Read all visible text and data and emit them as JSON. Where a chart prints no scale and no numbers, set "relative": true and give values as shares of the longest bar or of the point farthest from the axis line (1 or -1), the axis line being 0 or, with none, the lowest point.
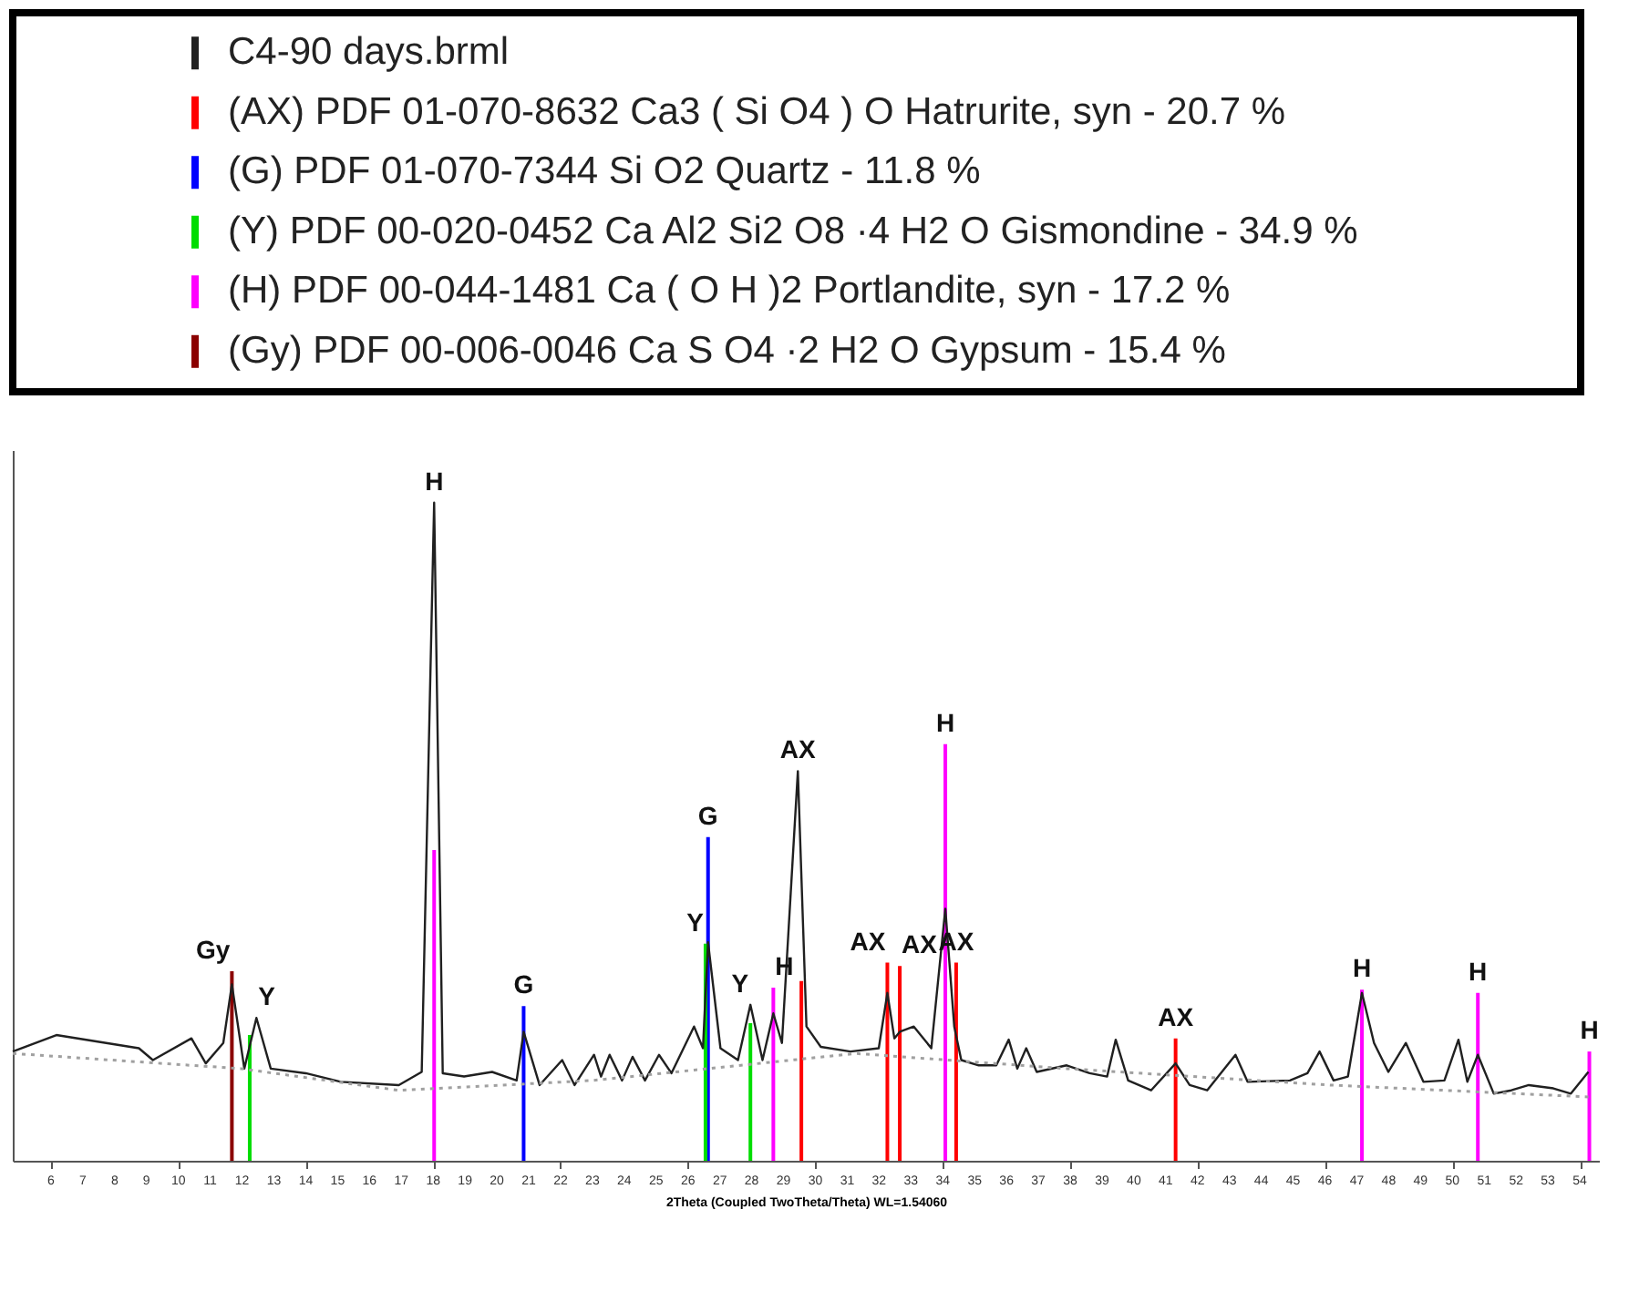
{
  "chart_data": {
    "type": "line",
    "relative": true,
    "xlabel": "2Theta (Coupled TwoTheta/Theta) WL=1.54060",
    "xlim": [
      4.8,
      54.6
    ],
    "xticks": [
      6,
      7,
      8,
      9,
      10,
      11,
      12,
      13,
      14,
      15,
      16,
      17,
      18,
      19,
      20,
      21,
      22,
      23,
      24,
      25,
      26,
      27,
      28,
      29,
      30,
      31,
      32,
      33,
      34,
      35,
      36,
      37,
      38,
      39,
      40,
      41,
      42,
      43,
      44,
      45,
      46,
      47,
      48,
      49,
      50,
      51,
      52,
      53,
      54
    ],
    "grid": false,
    "legend": "top",
    "marker": "none",
    "series": [
      {
        "name": "C4-90 days.brml",
        "color": "#202020",
        "line_style": "solid",
        "x": [
          4.8,
          6.17,
          8.76,
          9.2,
          10.41,
          10.86,
          11.41,
          11.68,
          12.07,
          12.45,
          12.9,
          14.0,
          15.1,
          16.92,
          17.64,
          18.03,
          18.3,
          18.97,
          19.85,
          20.62,
          20.84,
          21.34,
          22.05,
          22.44,
          23.05,
          23.27,
          23.54,
          23.93,
          24.26,
          24.65,
          25.09,
          25.48,
          26.19,
          26.47,
          26.63,
          27.02,
          27.57,
          27.96,
          28.34,
          28.68,
          28.95,
          29.45,
          29.72,
          30.17,
          31.1,
          31.99,
          32.26,
          32.48,
          32.65,
          33.09,
          33.64,
          34.08,
          34.36,
          34.58,
          35.13,
          35.68,
          36.07,
          36.34,
          36.62,
          36.95,
          37.89,
          38.61,
          39.16,
          39.43,
          39.82,
          40.54,
          41.31,
          41.75,
          42.3,
          43.19,
          43.57,
          44.9,
          45.45,
          45.83,
          46.27,
          46.72,
          47.16,
          47.54,
          47.99,
          48.54,
          49.09,
          49.75,
          50.19,
          50.47,
          50.8,
          51.3,
          51.85,
          52.4,
          53.17,
          53.72,
          54.27
        ],
        "values": [
          0.166,
          0.191,
          0.171,
          0.153,
          0.186,
          0.148,
          0.179,
          0.268,
          0.14,
          0.217,
          0.14,
          0.133,
          0.12,
          0.115,
          0.135,
          1.0,
          0.133,
          0.128,
          0.135,
          0.122,
          0.196,
          0.115,
          0.153,
          0.115,
          0.161,
          0.128,
          0.161,
          0.122,
          0.158,
          0.122,
          0.161,
          0.133,
          0.204,
          0.171,
          0.332,
          0.171,
          0.153,
          0.237,
          0.153,
          0.224,
          0.179,
          0.592,
          0.204,
          0.173,
          0.166,
          0.171,
          0.255,
          0.186,
          0.196,
          0.204,
          0.171,
          0.383,
          0.204,
          0.153,
          0.145,
          0.145,
          0.184,
          0.14,
          0.171,
          0.135,
          0.145,
          0.133,
          0.128,
          0.184,
          0.122,
          0.107,
          0.148,
          0.115,
          0.107,
          0.161,
          0.12,
          0.122,
          0.133,
          0.166,
          0.122,
          0.128,
          0.255,
          0.179,
          0.135,
          0.179,
          0.12,
          0.122,
          0.184,
          0.12,
          0.161,
          0.102,
          0.107,
          0.115,
          0.11,
          0.102,
          0.135
        ]
      },
      {
        "color": "#a0a0a0",
        "line_style": "dotted",
        "x": [
          4.8,
          11.96,
          16.92,
          23.0,
          31.27,
          37.89,
          46.17,
          54.27
        ],
        "values": [
          0.163,
          0.14,
          0.107,
          0.122,
          0.163,
          0.14,
          0.115,
          0.097
        ]
      },
      {
        "name": "(AX) PDF 01-070-8632 Ca3 ( Si O4 ) O Hatrurite, syn - 20.7 %",
        "color": "#ff0000",
        "type": "bar",
        "x": [
          29.56,
          32.26,
          32.65,
          34.42,
          41.31
        ],
        "values": [
          0.273,
          0.301,
          0.296,
          0.301,
          0.186
        ]
      },
      {
        "name": "(G) PDF 01-070-7344 Si O2 Quartz - 11.8 %",
        "color": "#0000ff",
        "type": "bar",
        "x": [
          20.84,
          26.63
        ],
        "values": [
          0.235,
          0.492
        ]
      },
      {
        "name": "(Y) PDF 00-020-0452 Ca Al2 Si2 O8 ·4 H2 O Gismondine - 34.9 %",
        "color": "#00dd00",
        "type": "bar",
        "x": [
          12.24,
          26.55,
          27.96
        ],
        "values": [
          0.191,
          0.33,
          0.209
        ]
      },
      {
        "name": "(H) PDF 00-044-1481 Ca ( O H )2 Portlandite, syn - 17.2 %",
        "color": "#ff00ff",
        "type": "bar",
        "x": [
          18.03,
          28.68,
          34.08,
          47.16,
          50.8,
          54.3
        ],
        "values": [
          0.472,
          0.263,
          0.633,
          0.26,
          0.255,
          0.166
        ]
      },
      {
        "name": "(Gy) PDF 00-006-0046 Ca S O4 ·2 H2 O Gypsum - 15.4 %",
        "color": "#8b0000",
        "type": "bar",
        "x": [
          11.68
        ],
        "values": [
          0.288
        ]
      }
    ],
    "annotations": [
      {
        "text": "Gy",
        "x": 11.68,
        "y": 0.288
      },
      {
        "text": "Y",
        "x": 12.45,
        "y": 0.217
      },
      {
        "text": "H",
        "x": 18.03,
        "y": 1.0
      },
      {
        "text": "G",
        "x": 20.84,
        "y": 0.235
      },
      {
        "text": "Y",
        "x": 26.55,
        "y": 0.33
      },
      {
        "text": "G",
        "x": 26.63,
        "y": 0.492
      },
      {
        "text": "Y",
        "x": 27.96,
        "y": 0.237
      },
      {
        "text": "H",
        "x": 28.68,
        "y": 0.263
      },
      {
        "text": "AX",
        "x": 29.45,
        "y": 0.592
      },
      {
        "text": "AX",
        "x": 32.26,
        "y": 0.301
      },
      {
        "text": "AX",
        "x": 32.65,
        "y": 0.296
      },
      {
        "text": "H",
        "x": 34.08,
        "y": 0.633
      },
      {
        "text": "AX",
        "x": 34.42,
        "y": 0.301
      },
      {
        "text": "AX",
        "x": 41.31,
        "y": 0.186
      },
      {
        "text": "H",
        "x": 47.16,
        "y": 0.26
      },
      {
        "text": "H",
        "x": 50.8,
        "y": 0.255
      },
      {
        "text": "H",
        "x": 54.3,
        "y": 0.166
      }
    ]
  }
}
